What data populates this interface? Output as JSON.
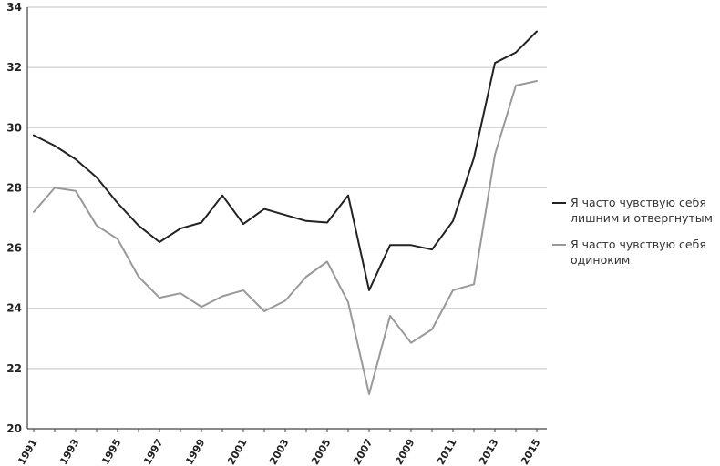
{
  "chart_data": {
    "type": "line",
    "title": "",
    "xlabel": "",
    "ylabel": "",
    "ylim": [
      20,
      34
    ],
    "yticks": [
      20,
      22,
      24,
      26,
      28,
      30,
      32,
      34
    ],
    "x": [
      1991,
      1992,
      1993,
      1994,
      1995,
      1996,
      1997,
      1998,
      1999,
      2000,
      2001,
      2002,
      2003,
      2004,
      2005,
      2006,
      2007,
      2008,
      2009,
      2010,
      2011,
      2012,
      2013,
      2014,
      2015
    ],
    "xticks": [
      "1991",
      "1993",
      "1995",
      "1997",
      "1999",
      "2001",
      "2003",
      "2005",
      "2007",
      "2009",
      "2011",
      "2013",
      "2015"
    ],
    "grid": "horizontal",
    "legend_position": "right",
    "series": [
      {
        "name": "Я часто чувствую себя лишним и отвергнутым",
        "color": "#222222",
        "values": [
          29.75,
          29.4,
          28.95,
          28.35,
          27.5,
          26.75,
          26.2,
          26.65,
          26.85,
          27.75,
          26.8,
          27.3,
          27.1,
          26.9,
          26.85,
          27.75,
          24.6,
          26.1,
          26.1,
          25.95,
          26.9,
          29.0,
          32.15,
          32.5,
          33.2
        ]
      },
      {
        "name": "Я часто чувствую себя одиноким",
        "color": "#999999",
        "values": [
          27.2,
          28.0,
          27.9,
          26.75,
          26.3,
          25.05,
          24.35,
          24.5,
          24.05,
          24.4,
          24.6,
          23.9,
          24.25,
          25.05,
          25.55,
          24.2,
          21.15,
          23.75,
          22.85,
          23.3,
          24.6,
          24.8,
          29.1,
          31.4,
          31.55
        ]
      }
    ]
  }
}
